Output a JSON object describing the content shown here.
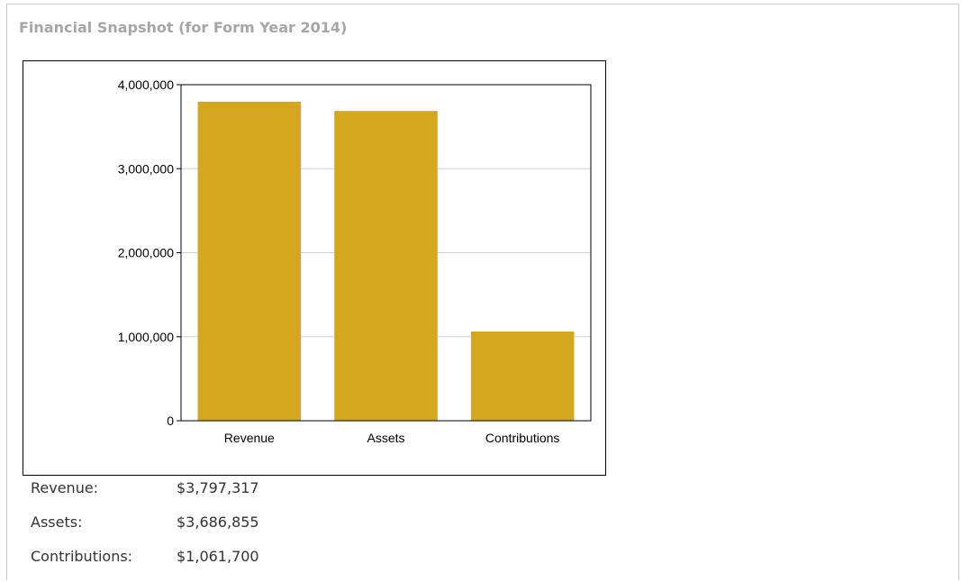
{
  "panel": {
    "title": "Financial Snapshot  (for Form Year 2014)"
  },
  "chart_data": {
    "type": "bar",
    "title": "",
    "xlabel": "",
    "ylabel": "",
    "categories": [
      "Revenue",
      "Assets",
      "Contributions"
    ],
    "values": [
      3797317,
      3686855,
      1061700
    ],
    "ylim": [
      0,
      4000000
    ],
    "yticks": [
      0,
      1000000,
      2000000,
      3000000,
      4000000
    ],
    "ytick_labels": [
      "0",
      "1,000,000",
      "2,000,000",
      "3,000,000",
      "4,000,000"
    ],
    "grid": true,
    "legend": "none",
    "bar_color": "#d4a71e",
    "grid_color": "#d3d3d3"
  },
  "summary": {
    "rows": [
      {
        "label": "Revenue:",
        "value": "$3,797,317"
      },
      {
        "label": "Assets:",
        "value": "$3,686,855"
      },
      {
        "label": "Contributions:",
        "value": "$1,061,700"
      }
    ]
  }
}
